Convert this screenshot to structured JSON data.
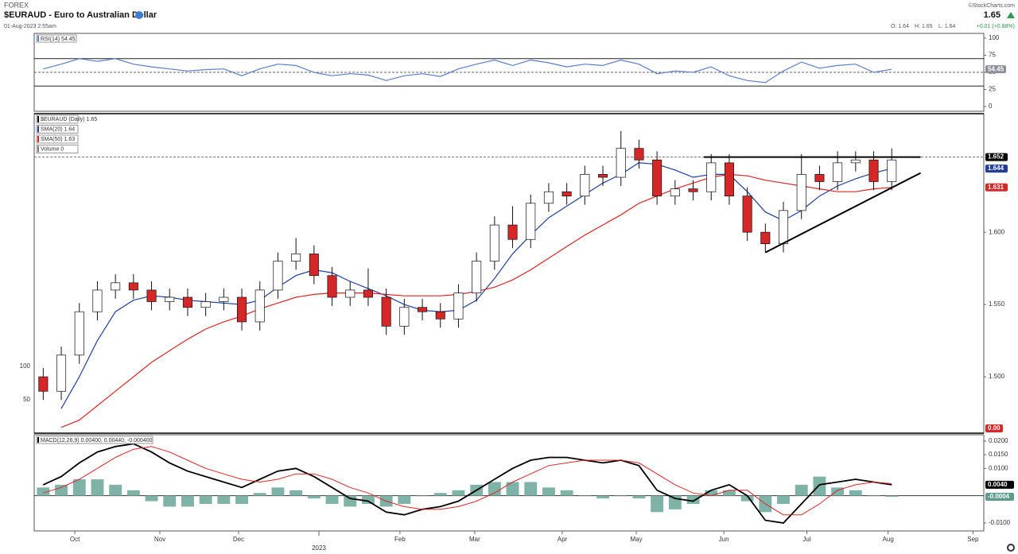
{
  "header": {
    "exchange": "FOREX",
    "title": "$EURAUD - Euro to Australian Dollar",
    "date": "01-Aug-2023 2:55am",
    "copyright": "©StockCharts.com",
    "last": "1.65",
    "open": "O: 1.64",
    "high": "H: 1.65",
    "low": "L: 1.64",
    "change": "+0.01 (+0.88%)"
  },
  "x_axis": {
    "xlim": [
      -0.5,
      52.1
    ],
    "xticks": [
      {
        "value": 1.75,
        "label": "Oct"
      },
      {
        "value": 6.46,
        "label": "Nov"
      },
      {
        "value": 10.82,
        "label": "Dec"
      },
      {
        "value": 19.76,
        "label": "Feb"
      },
      {
        "value": 23.9,
        "label": "Mar"
      },
      {
        "value": 28.75,
        "label": "Apr"
      },
      {
        "value": 32.85,
        "label": "May"
      },
      {
        "value": 37.7,
        "label": "Jun"
      },
      {
        "value": 42.3,
        "label": "Jul"
      },
      {
        "value": 46.8,
        "label": "Aug"
      },
      {
        "value": 51.5,
        "label": "Sep"
      }
    ],
    "year_ticks": [
      {
        "value": 15.27,
        "label": "2023"
      }
    ]
  },
  "chart_data": [
    {
      "type": "rsi",
      "legend": "RSI(14) 54.45",
      "ylim": [
        -7,
        107
      ],
      "yticks": [
        0,
        25,
        50,
        75,
        100
      ],
      "levels": [
        70,
        30
      ],
      "midline": 50,
      "series": [
        {
          "name": "RSI(14)",
          "color": "#5b7ec9",
          "values": [
            55,
            62,
            70,
            66,
            70,
            62,
            58,
            55,
            52,
            54,
            55,
            45,
            55,
            62,
            60,
            50,
            45,
            48,
            46,
            38,
            45,
            48,
            44,
            55,
            62,
            68,
            60,
            68,
            64,
            58,
            62,
            60,
            68,
            62,
            48,
            52,
            50,
            58,
            45,
            38,
            35,
            52,
            65,
            56,
            60,
            62,
            50,
            54.45
          ]
        }
      ],
      "tags": [
        {
          "value": 54.45,
          "color": "#8a8f99"
        }
      ]
    },
    {
      "type": "candlestick",
      "legend": [
        "$EURAUD (Daily) 1.65",
        "SMA(20) 1.64",
        "SMA(50) 1.63",
        "Volume 0"
      ],
      "legend_colors": [
        "#000000",
        "#1f3f9a",
        "#d62728",
        "#777777"
      ],
      "ylim": [
        1.461,
        1.682
      ],
      "yticks": [
        {
          "value": 1.5,
          "label": "1.500"
        },
        {
          "value": 1.55,
          "label": "1.550"
        },
        {
          "value": 1.6,
          "label": "1.600"
        }
      ],
      "vol_ylim": [
        0,
        477
      ],
      "vol_ticks": [
        50,
        100
      ],
      "open": [
        1.5,
        1.49,
        1.515,
        1.545,
        1.56,
        1.565,
        1.56,
        1.552,
        1.555,
        1.548,
        1.552,
        1.555,
        1.538,
        1.56,
        1.58,
        1.585,
        1.57,
        1.555,
        1.56,
        1.555,
        1.535,
        1.548,
        1.545,
        1.54,
        1.558,
        1.58,
        1.605,
        1.595,
        1.62,
        1.628,
        1.625,
        1.64,
        1.638,
        1.658,
        1.65,
        1.625,
        1.63,
        1.628,
        1.648,
        1.625,
        1.6,
        1.592,
        1.615,
        1.64,
        1.635,
        1.648,
        1.65,
        1.635
      ],
      "high": [
        1.506,
        1.521,
        1.551,
        1.566,
        1.571,
        1.571,
        1.566,
        1.561,
        1.561,
        1.558,
        1.561,
        1.561,
        1.566,
        1.586,
        1.596,
        1.591,
        1.576,
        1.566,
        1.575,
        1.561,
        1.554,
        1.554,
        1.551,
        1.564,
        1.586,
        1.611,
        1.618,
        1.626,
        1.634,
        1.634,
        1.646,
        1.646,
        1.67,
        1.664,
        1.656,
        1.636,
        1.636,
        1.654,
        1.654,
        1.631,
        1.606,
        1.621,
        1.654,
        1.646,
        1.656,
        1.656,
        1.656,
        1.658
      ],
      "low": [
        1.484,
        1.484,
        1.509,
        1.539,
        1.554,
        1.554,
        1.546,
        1.546,
        1.542,
        1.542,
        1.546,
        1.532,
        1.532,
        1.554,
        1.574,
        1.564,
        1.549,
        1.549,
        1.549,
        1.529,
        1.529,
        1.539,
        1.534,
        1.534,
        1.552,
        1.574,
        1.589,
        1.589,
        1.614,
        1.619,
        1.619,
        1.632,
        1.632,
        1.644,
        1.619,
        1.619,
        1.622,
        1.622,
        1.619,
        1.594,
        1.586,
        1.586,
        1.609,
        1.629,
        1.629,
        1.642,
        1.629,
        1.629
      ],
      "close": [
        1.49,
        1.515,
        1.545,
        1.56,
        1.565,
        1.56,
        1.552,
        1.555,
        1.548,
        1.552,
        1.555,
        1.538,
        1.56,
        1.58,
        1.585,
        1.57,
        1.555,
        1.56,
        1.555,
        1.535,
        1.548,
        1.545,
        1.54,
        1.558,
        1.58,
        1.605,
        1.595,
        1.62,
        1.628,
        1.625,
        1.64,
        1.638,
        1.658,
        1.65,
        1.625,
        1.63,
        1.628,
        1.648,
        1.625,
        1.6,
        1.592,
        1.615,
        1.64,
        1.635,
        1.648,
        1.65,
        1.635,
        1.65
      ],
      "up_color": "#ffffff",
      "down_color": "#d62728",
      "series": [
        {
          "name": "SMA(20)",
          "color": "#1f3f9a",
          "values": [
            null,
            1.478,
            1.5,
            1.525,
            1.545,
            1.553,
            1.556,
            1.555,
            1.553,
            1.552,
            1.551,
            1.55,
            1.553,
            1.562,
            1.57,
            1.574,
            1.572,
            1.566,
            1.561,
            1.556,
            1.55,
            1.546,
            1.545,
            1.546,
            1.553,
            1.568,
            1.585,
            1.598,
            1.61,
            1.618,
            1.626,
            1.634,
            1.64,
            1.648,
            1.647,
            1.643,
            1.638,
            1.64,
            1.64,
            1.628,
            1.614,
            1.608,
            1.615,
            1.625,
            1.632,
            1.637,
            1.641,
            1.644
          ]
        },
        {
          "name": "SMA(50)",
          "color": "#d62728",
          "values": [
            null,
            1.465,
            1.47,
            1.48,
            1.49,
            1.5,
            1.51,
            1.518,
            1.526,
            1.533,
            1.538,
            1.542,
            1.547,
            1.551,
            1.555,
            1.557,
            1.558,
            1.558,
            1.558,
            1.557,
            1.556,
            1.556,
            1.556,
            1.557,
            1.559,
            1.562,
            1.567,
            1.574,
            1.582,
            1.59,
            1.598,
            1.605,
            1.612,
            1.62,
            1.625,
            1.63,
            1.634,
            1.638,
            1.64,
            1.639,
            1.636,
            1.634,
            1.632,
            1.63,
            1.628,
            1.628,
            1.63,
            1.631
          ]
        }
      ],
      "last_line": 1.652,
      "trendlines": [
        {
          "x": [
            36.6,
            48.6
          ],
          "y": [
            1.652,
            1.652
          ]
        },
        {
          "x": [
            40,
            48.6
          ],
          "y": [
            1.586,
            1.641
          ]
        }
      ],
      "tags": [
        {
          "value": 1.652,
          "color": "#000000"
        },
        {
          "value": 1.644,
          "color": "#1f3f9a"
        },
        {
          "value": 1.631,
          "color": "#d62728"
        }
      ],
      "vol_tags": [
        {
          "value": 0,
          "label": "0.00",
          "color": "#d62728"
        }
      ]
    },
    {
      "type": "macd",
      "legend": "MACD(12,26,9) 0.00400, 0.00440, -0.000400",
      "ylim": [
        -0.0129,
        0.0223
      ],
      "yticks": [
        {
          "value": -0.01,
          "label": "-0.0100"
        },
        {
          "value": 0.01,
          "label": "0.0100"
        },
        {
          "value": 0.015,
          "label": "0.0150"
        },
        {
          "value": 0.02,
          "label": "0.0200"
        }
      ],
      "zero_line": 0,
      "series": [
        {
          "name": "MACD",
          "color": "#000000",
          "values": [
            0.004,
            0.007,
            0.012,
            0.016,
            0.018,
            0.019,
            0.016,
            0.012,
            0.009,
            0.007,
            0.005,
            0.003,
            0.006,
            0.009,
            0.01,
            0.007,
            0.003,
            -0.001,
            -0.002,
            -0.006,
            -0.007,
            -0.005,
            -0.004,
            -0.002,
            0.002,
            0.006,
            0.01,
            0.013,
            0.014,
            0.014,
            0.013,
            0.012,
            0.013,
            0.011,
            0.002,
            -0.001,
            -0.002,
            0.002,
            0.004,
            0,
            -0.009,
            -0.01,
            -0.003,
            0.004,
            0.005,
            0.006,
            0.005,
            0.004
          ]
        },
        {
          "name": "Signal",
          "color": "#d62728",
          "values": [
            0.001,
            0.003,
            0.006,
            0.01,
            0.014,
            0.017,
            0.018,
            0.016,
            0.013,
            0.01,
            0.008,
            0.006,
            0.005,
            0.006,
            0.008,
            0.008,
            0.006,
            0.003,
            0.001,
            -0.002,
            -0.004,
            -0.005,
            -0.005,
            -0.004,
            -0.002,
            0.001,
            0.005,
            0.008,
            0.011,
            0.012,
            0.013,
            0.013,
            0.013,
            0.012,
            0.008,
            0.004,
            0.001,
            0,
            0.002,
            0.002,
            -0.003,
            -0.007,
            -0.007,
            -0.003,
            0.002,
            0.004,
            0.005,
            0.0044
          ]
        }
      ],
      "histogram": {
        "color": "#7fb3a8",
        "values": [
          0.003,
          0.004,
          0.006,
          0.006,
          0.004,
          0.002,
          -0.002,
          -0.004,
          -0.004,
          -0.003,
          -0.003,
          -0.003,
          0.001,
          0.003,
          0.002,
          -0.001,
          -0.003,
          -0.004,
          -0.003,
          -0.004,
          -0.003,
          0,
          0.001,
          0.002,
          0.004,
          0.005,
          0.005,
          0.005,
          0.003,
          0.002,
          0,
          -0.001,
          0,
          -0.001,
          -0.006,
          -0.005,
          -0.003,
          0.002,
          0.002,
          -0.002,
          -0.006,
          -0.003,
          0.004,
          0.007,
          0.003,
          0.002,
          0,
          -0.0004
        ]
      },
      "tags": [
        {
          "value": 0.004,
          "label": "0.0040",
          "color": "#000000"
        },
        {
          "value": -0.0004,
          "color": "#5f9a8c"
        }
      ]
    }
  ]
}
